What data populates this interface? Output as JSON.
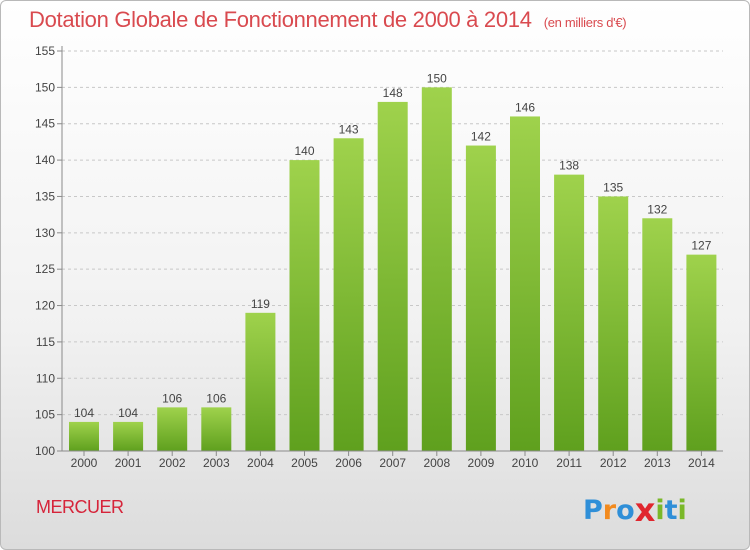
{
  "header": {
    "title": "Dotation Globale de Fonctionnement de 2000 à 2014",
    "unit": "(en milliers d'€)"
  },
  "commune": "MERCUER",
  "logo": {
    "text": "Proxiti",
    "letters": [
      "P",
      "r",
      "o",
      "x",
      "i",
      "t",
      "i"
    ],
    "colors": [
      "#2f8fd8",
      "#f28a1e",
      "#2f8fd8",
      "#e0262e",
      "#7ab829",
      "#2f8fd8",
      "#7ab829"
    ]
  },
  "chart_data": {
    "type": "bar",
    "title": "Dotation Globale de Fonctionnement de 2000 à 2014",
    "subtitle": "(en milliers d'€)",
    "xlabel": "",
    "ylabel": "",
    "categories": [
      "2000",
      "2001",
      "2002",
      "2003",
      "2004",
      "2005",
      "2006",
      "2007",
      "2008",
      "2009",
      "2010",
      "2011",
      "2012",
      "2013",
      "2014"
    ],
    "values": [
      104,
      104,
      106,
      106,
      119,
      140,
      143,
      148,
      150,
      142,
      146,
      138,
      135,
      132,
      127
    ],
    "ylim": [
      100,
      155
    ],
    "yticks": [
      100,
      105,
      110,
      115,
      120,
      125,
      130,
      135,
      140,
      145,
      150,
      155
    ],
    "grid": true,
    "bar_color": "#86c23a"
  }
}
